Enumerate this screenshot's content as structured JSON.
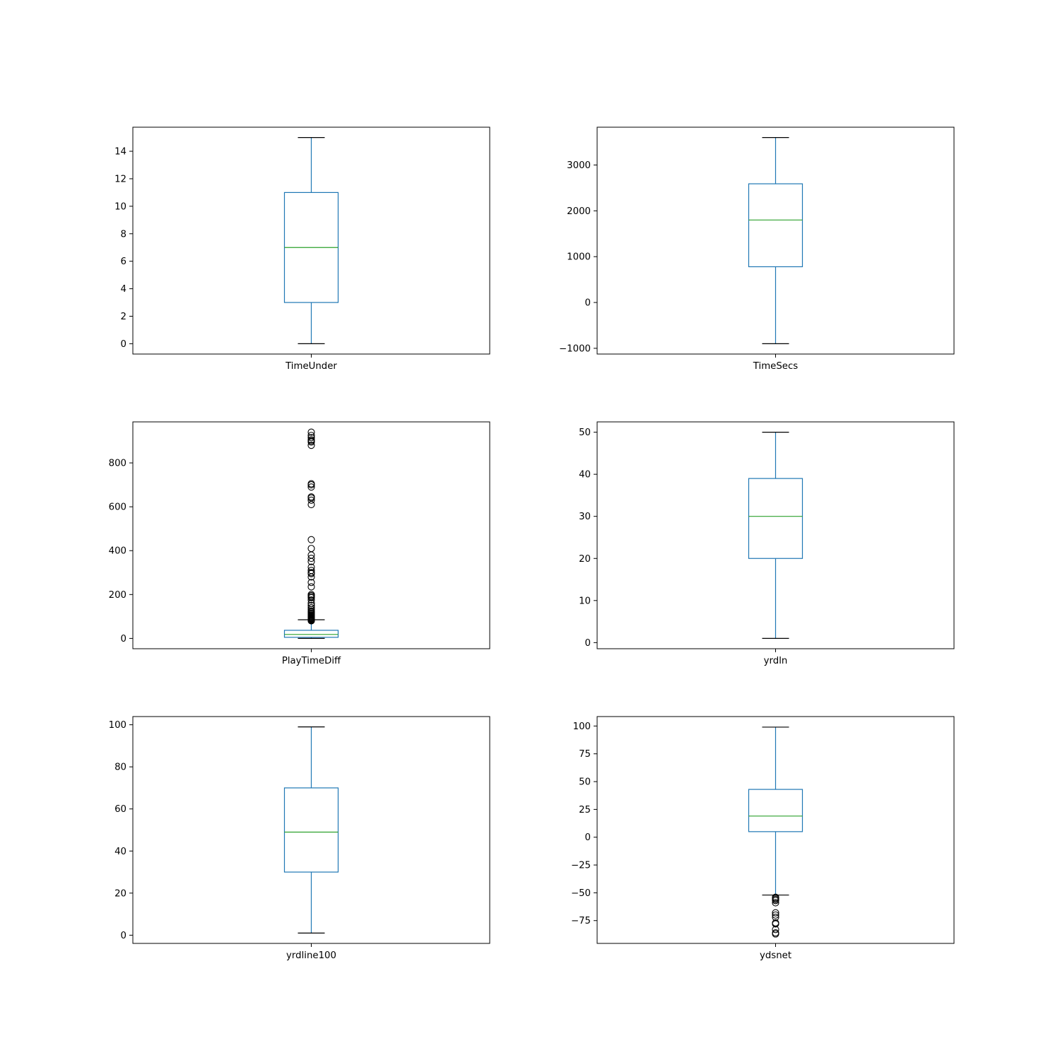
{
  "colors": {
    "box": "#1f77b4",
    "median": "#2ca02c",
    "whisker": "#1f77b4",
    "cap": "#000000",
    "flier": "#000000",
    "frame": "#000000"
  },
  "chart_data": [
    {
      "type": "box",
      "xlabel": "TimeUnder",
      "ylim": [
        -0.75,
        15.75
      ],
      "yticks": [
        0,
        2,
        4,
        6,
        8,
        10,
        12,
        14
      ],
      "tick_labels": [
        "0",
        "2",
        "4",
        "6",
        "8",
        "10",
        "12",
        "14"
      ],
      "whisker_low": 0,
      "q1": 3,
      "median": 7,
      "q3": 11,
      "whisker_high": 15,
      "fliers": []
    },
    {
      "type": "box",
      "xlabel": "TimeSecs",
      "ylim": [
        -1125,
        3825
      ],
      "yticks": [
        -1000,
        0,
        1000,
        2000,
        3000
      ],
      "tick_labels": [
        "−1000",
        "0",
        "1000",
        "2000",
        "3000"
      ],
      "whisker_low": -900,
      "q1": 780,
      "median": 1800,
      "q3": 2590,
      "whisker_high": 3600,
      "fliers": []
    },
    {
      "type": "box",
      "xlabel": "PlayTimeDiff",
      "ylim": [
        -47,
        987
      ],
      "yticks": [
        0,
        200,
        400,
        600,
        800
      ],
      "tick_labels": [
        "0",
        "200",
        "400",
        "600",
        "800"
      ],
      "whisker_low": 0,
      "q1": 5,
      "median": 18,
      "q3": 37,
      "whisker_high": 85,
      "fliers": [
        80,
        82,
        84,
        86,
        88,
        90,
        92,
        95,
        98,
        100,
        103,
        106,
        110,
        115,
        120,
        125,
        132,
        140,
        150,
        160,
        175,
        185,
        190,
        195,
        200,
        235,
        255,
        280,
        295,
        300,
        310,
        325,
        350,
        365,
        380,
        410,
        450,
        610,
        630,
        640,
        645,
        690,
        700,
        705,
        880,
        895,
        900,
        905,
        915,
        925,
        940
      ]
    },
    {
      "type": "box",
      "xlabel": "yrdln",
      "ylim": [
        -1.45,
        52.45
      ],
      "yticks": [
        0,
        10,
        20,
        30,
        40,
        50
      ],
      "tick_labels": [
        "0",
        "10",
        "20",
        "30",
        "40",
        "50"
      ],
      "whisker_low": 1,
      "q1": 20,
      "median": 30,
      "q3": 39,
      "whisker_high": 50,
      "fliers": []
    },
    {
      "type": "box",
      "xlabel": "yrdline100",
      "ylim": [
        -3.9,
        103.9
      ],
      "yticks": [
        0,
        20,
        40,
        60,
        80,
        100
      ],
      "tick_labels": [
        "0",
        "20",
        "40",
        "60",
        "80",
        "100"
      ],
      "whisker_low": 1,
      "q1": 30,
      "median": 49,
      "q3": 70,
      "whisker_high": 99,
      "fliers": []
    },
    {
      "type": "box",
      "xlabel": "ydsnet",
      "ylim": [
        -95.5,
        108.5
      ],
      "yticks": [
        -75,
        -50,
        -25,
        0,
        25,
        50,
        75,
        100
      ],
      "tick_labels": [
        "−75",
        "−50",
        "−25",
        "0",
        "25",
        "50",
        "75",
        "100"
      ],
      "whisker_low": -52,
      "q1": 5,
      "median": 19,
      "q3": 43,
      "whisker_high": 99,
      "fliers": [
        -54,
        -55,
        -56,
        -57,
        -59,
        -68,
        -70,
        -72,
        -77,
        -78,
        -83,
        -86,
        -87
      ]
    }
  ]
}
